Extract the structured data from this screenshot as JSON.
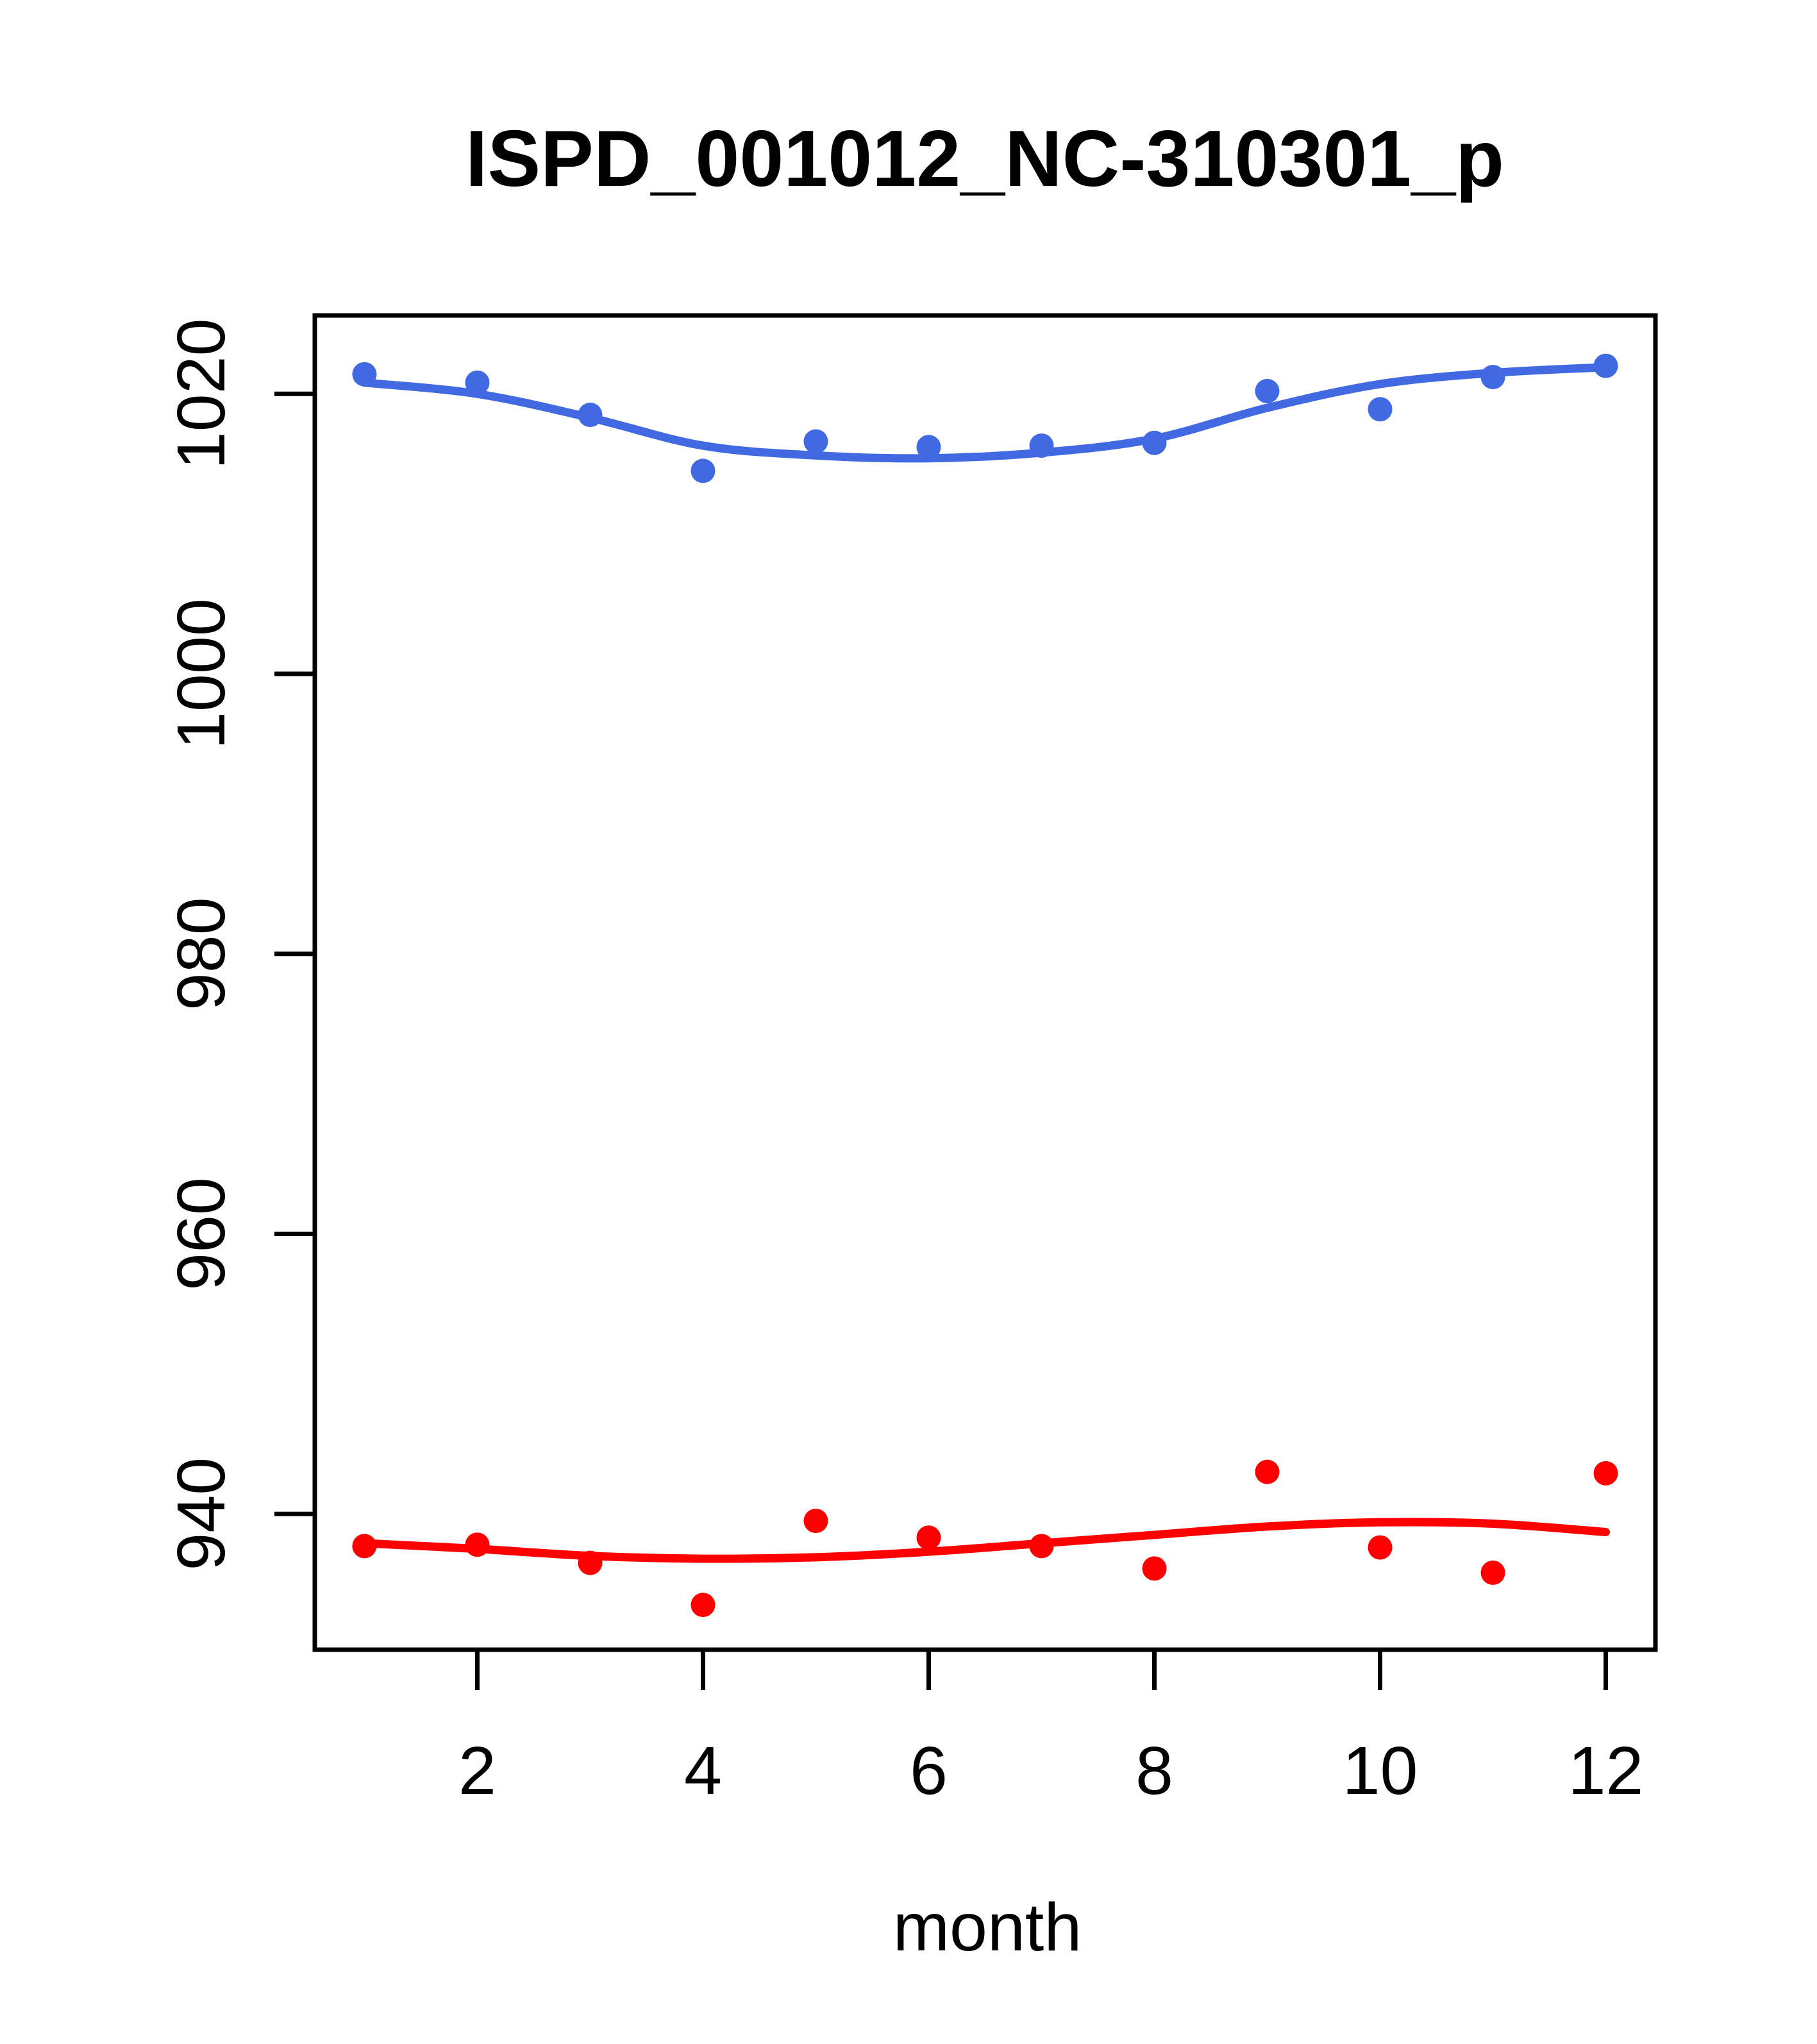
{
  "figure": {
    "title": "ISPD_001012_NC-310301_p",
    "xlabel": "month"
  },
  "chart_data": {
    "type": "scatter",
    "title": "ISPD_001012_NC-310301_p",
    "xlabel": "month",
    "ylabel": "",
    "x": [
      1,
      2,
      3,
      4,
      5,
      6,
      7,
      8,
      9,
      10,
      11,
      12
    ],
    "x_ticks": [
      2,
      4,
      6,
      8,
      10,
      12
    ],
    "y_ticks": [
      940,
      960,
      980,
      1000,
      1020
    ],
    "xlim": [
      0.56,
      12.44
    ],
    "ylim": [
      930.3,
      1025.6
    ],
    "grid": false,
    "legend": null,
    "series": [
      {
        "name": "blue-series",
        "color": "#4169E1",
        "marker": "filled-circle",
        "points": [
          1021.4,
          1020.8,
          1018.5,
          1014.5,
          1016.6,
          1016.2,
          1016.3,
          1016.5,
          1020.2,
          1018.9,
          1021.2,
          1022.0
        ],
        "smooth": [
          1020.8,
          1020.0,
          1018.3,
          1016.3,
          1015.6,
          1015.4,
          1015.8,
          1016.8,
          1019.0,
          1020.7,
          1021.5,
          1021.9
        ]
      },
      {
        "name": "red-series",
        "color": "#FF0000",
        "marker": "filled-circle",
        "points": [
          937.7,
          937.8,
          936.5,
          933.5,
          939.5,
          938.3,
          937.7,
          936.1,
          943.0,
          937.6,
          935.8,
          942.9
        ],
        "smooth": [
          937.9,
          937.5,
          937.0,
          936.8,
          936.9,
          937.3,
          937.9,
          938.5,
          939.1,
          939.4,
          939.3,
          938.7
        ]
      }
    ]
  }
}
